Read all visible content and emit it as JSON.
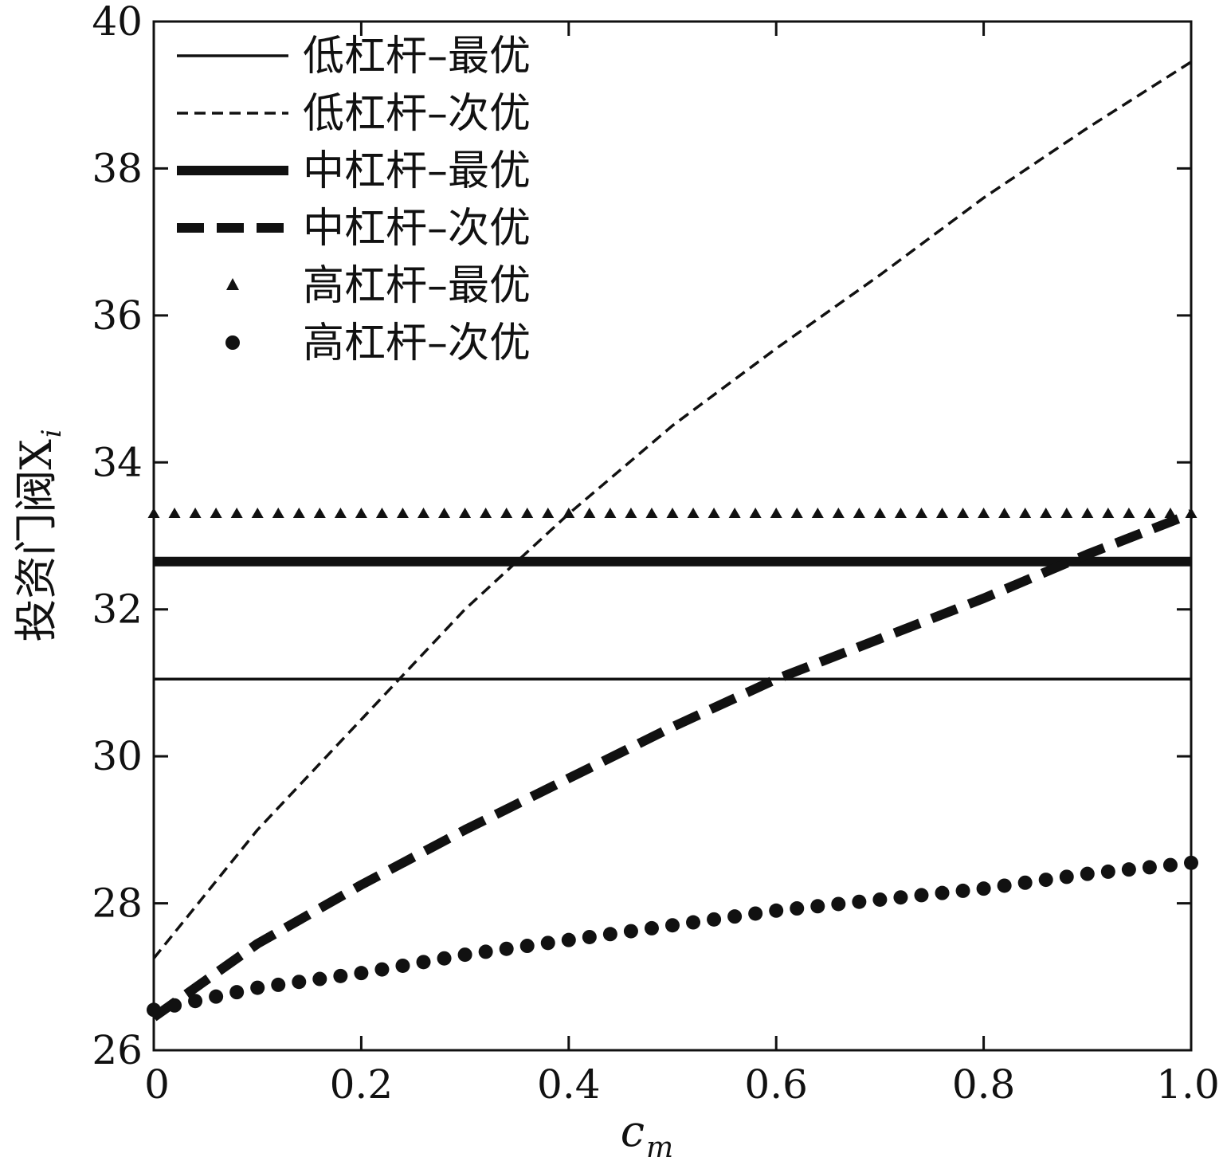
{
  "chart_data": {
    "type": "line",
    "xlabel": "c",
    "xlabel_sub": "m",
    "ylabel": "投资门阀X",
    "ylabel_sub": "i",
    "xlim": [
      0,
      1.0
    ],
    "ylim": [
      26,
      40
    ],
    "xticks": [
      "0",
      "0.2",
      "0.4",
      "0.6",
      "0.8",
      "1.0"
    ],
    "yticks": [
      "26",
      "28",
      "30",
      "32",
      "34",
      "36",
      "38",
      "40"
    ],
    "grid": false,
    "legend_position": "top-left",
    "x": [
      0,
      0.1,
      0.2,
      0.3,
      0.4,
      0.5,
      0.6,
      0.7,
      0.8,
      0.9,
      1.0
    ],
    "series": [
      {
        "name": "低杠杆–最优",
        "style": "thin-solid",
        "values": [
          31.05,
          31.05,
          31.05,
          31.05,
          31.05,
          31.05,
          31.05,
          31.05,
          31.05,
          31.05,
          31.05
        ]
      },
      {
        "name": "低杠杆–次优",
        "style": "thin-dashed",
        "values": [
          27.25,
          29.0,
          30.5,
          32.0,
          33.3,
          34.5,
          35.55,
          36.55,
          37.6,
          38.55,
          39.45
        ]
      },
      {
        "name": "中杠杆–最优",
        "style": "thick-solid",
        "values": [
          32.65,
          32.65,
          32.65,
          32.65,
          32.65,
          32.65,
          32.65,
          32.65,
          32.65,
          32.65,
          32.65
        ]
      },
      {
        "name": "中杠杆–次优",
        "style": "thick-dashed",
        "values": [
          26.45,
          27.45,
          28.25,
          29.0,
          29.7,
          30.4,
          31.05,
          31.6,
          32.15,
          32.75,
          33.3
        ]
      },
      {
        "name": "高杠杆–最优",
        "style": "triangle-markers",
        "values": [
          33.3,
          33.3,
          33.3,
          33.3,
          33.3,
          33.3,
          33.3,
          33.3,
          33.3,
          33.3,
          33.3
        ]
      },
      {
        "name": "高杠杆–次优",
        "style": "circle-markers",
        "values": [
          26.55,
          26.85,
          27.05,
          27.3,
          27.5,
          27.7,
          27.9,
          28.05,
          28.2,
          28.4,
          28.55
        ]
      }
    ]
  }
}
